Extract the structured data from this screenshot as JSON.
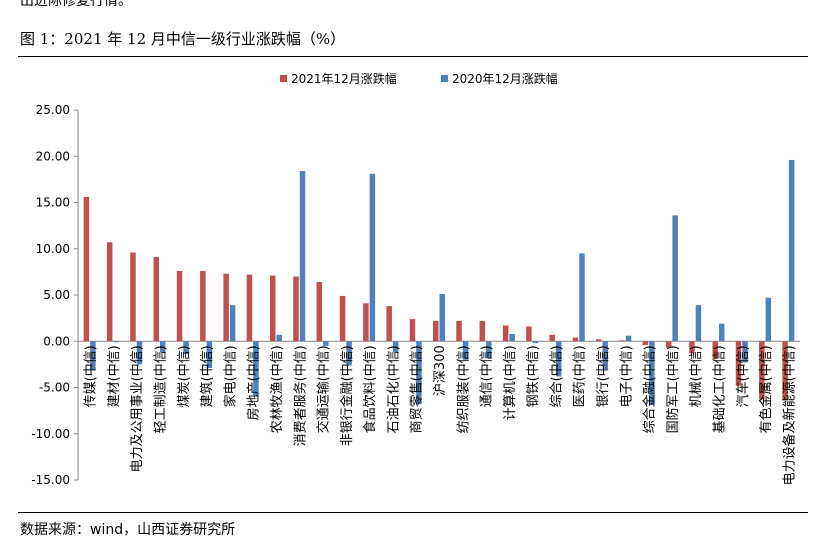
{
  "top_text": "出进际修复行情。",
  "figure_title": "图 1：2021 年 12 月中信一级行业涨跌幅（%）",
  "source": "数据来源：wind，山西证券研究所",
  "chart_data": {
    "type": "bar",
    "title": "",
    "xlabel": "",
    "ylabel": "",
    "ylim": [
      -15,
      25
    ],
    "yticks": [
      "25.00",
      "20.00",
      "15.00",
      "10.00",
      "5.00",
      "0.00",
      "-5.00",
      "-10.00",
      "-15.00"
    ],
    "grid": false,
    "legend_position": "top-center",
    "categories": [
      "传媒(中信)",
      "建材(中信)",
      "电力及公用事业(中信)",
      "轻工制造(中信)",
      "煤炭(中信)",
      "建筑(中信)",
      "家电(中信)",
      "房地产(中信)",
      "农林牧渔(中信)",
      "消费者服务(中信)",
      "交通运输(中信)",
      "非银行金融(中信)",
      "食品饮料(中信)",
      "石油石化(中信)",
      "商贸零售(中信)",
      "沪深300",
      "纺织服装(中信)",
      "通信(中信)",
      "计算机(中信)",
      "钢铁(中信)",
      "综合(中信)",
      "医药(中信)",
      "银行(中信)",
      "电子(中信)",
      "综合金融(中信)",
      "国防军工(中信)",
      "机械(中信)",
      "基础化工(中信)",
      "汽车(中信)",
      "有色金属(中信)",
      "电力设备及新能源(中信)"
    ],
    "series": [
      {
        "name": "2021年12月涨跌幅",
        "color": "#c0504d",
        "values": [
          15.6,
          10.7,
          9.6,
          9.1,
          7.6,
          7.6,
          7.3,
          7.2,
          7.1,
          7.0,
          6.4,
          4.9,
          4.1,
          3.8,
          2.4,
          2.2,
          2.2,
          2.2,
          1.7,
          1.6,
          0.7,
          0.4,
          0.2,
          0.1,
          -0.4,
          -0.7,
          -1.3,
          -1.9,
          -4.8,
          -6.3,
          -6.4
        ]
      },
      {
        "name": "2020年12月涨跌幅",
        "color": "#4f81bd",
        "values": [
          -3.1,
          -0.1,
          -2.5,
          -1.2,
          -1.4,
          -2.9,
          3.9,
          -6.0,
          0.7,
          18.4,
          -0.5,
          -2.6,
          18.1,
          -1.2,
          -6.8,
          5.1,
          -2.0,
          -1.8,
          0.8,
          -0.2,
          -3.8,
          9.5,
          -3.0,
          0.6,
          -6.9,
          13.6,
          3.9,
          1.9,
          -2.3,
          4.7,
          19.6
        ]
      }
    ]
  }
}
